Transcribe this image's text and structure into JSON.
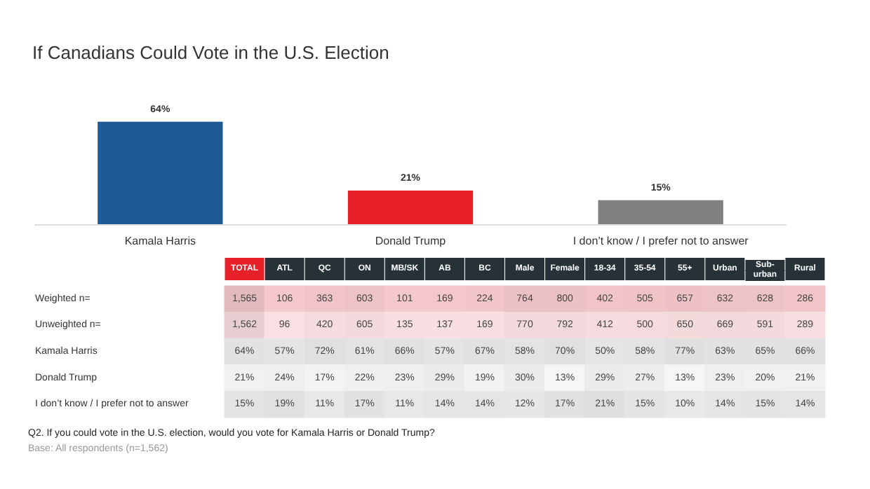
{
  "chart_data": [
    {
      "type": "bar",
      "title": "If Canadians Could Vote in the U.S. Election",
      "categories": [
        "Kamala Harris",
        "Donald Trump",
        "I don’t know / I prefer not to answer"
      ],
      "values": [
        64,
        21,
        15
      ],
      "colors": [
        "#1f5a96",
        "#e8202a",
        "#808080"
      ],
      "value_labels": [
        "64%",
        "21%",
        "15%"
      ],
      "annotations": [
        "Q2. If you could vote in the U.S. election, would you vote for Kamala Harris or Donald Trump?",
        "Base: All respondents (n=1,562)"
      ]
    },
    {
      "type": "heatmap",
      "categories": [
        "TOTAL",
        "ATL",
        "QC",
        "ON",
        "MB/SK",
        "AB",
        "BC",
        "Male",
        "Female",
        "18-34",
        "35-54",
        "55+",
        "Urban",
        "Sub-urban",
        "Rural"
      ],
      "y_categories": [
        "Weighted n=",
        "Unweighted n=",
        "Kamala Harris",
        "Donald Trump",
        "I don’t know / I prefer not to answer"
      ],
      "cells": [
        [
          1565,
          106,
          363,
          603,
          101,
          169,
          224,
          764,
          800,
          402,
          505,
          657,
          632,
          628,
          286
        ],
        [
          1562,
          96,
          420,
          605,
          135,
          137,
          169,
          770,
          792,
          412,
          500,
          650,
          669,
          591,
          289
        ],
        [
          64,
          57,
          72,
          61,
          66,
          57,
          67,
          58,
          70,
          50,
          58,
          77,
          63,
          65,
          66
        ],
        [
          21,
          24,
          17,
          22,
          23,
          29,
          19,
          30,
          13,
          29,
          27,
          13,
          23,
          20,
          21
        ],
        [
          15,
          19,
          11,
          17,
          11,
          14,
          14,
          12,
          17,
          21,
          15,
          10,
          14,
          15,
          14
        ]
      ],
      "cell_labels": [
        [
          "1,565",
          "106",
          "363",
          "603",
          "101",
          "169",
          "224",
          "764",
          "800",
          "402",
          "505",
          "657",
          "632",
          "628",
          "286"
        ],
        [
          "1,562",
          "96",
          "420",
          "605",
          "135",
          "137",
          "169",
          "770",
          "792",
          "412",
          "500",
          "650",
          "669",
          "591",
          "289"
        ],
        [
          "64%",
          "57%",
          "72%",
          "61%",
          "66%",
          "57%",
          "67%",
          "58%",
          "70%",
          "50%",
          "58%",
          "77%",
          "63%",
          "65%",
          "66%"
        ],
        [
          "21%",
          "24%",
          "17%",
          "22%",
          "23%",
          "29%",
          "19%",
          "30%",
          "13%",
          "29%",
          "27%",
          "13%",
          "23%",
          "20%",
          "21%"
        ],
        [
          "15%",
          "19%",
          "11%",
          "17%",
          "11%",
          "14%",
          "14%",
          "12%",
          "17%",
          "21%",
          "15%",
          "10%",
          "14%",
          "15%",
          "14%"
        ]
      ]
    }
  ]
}
